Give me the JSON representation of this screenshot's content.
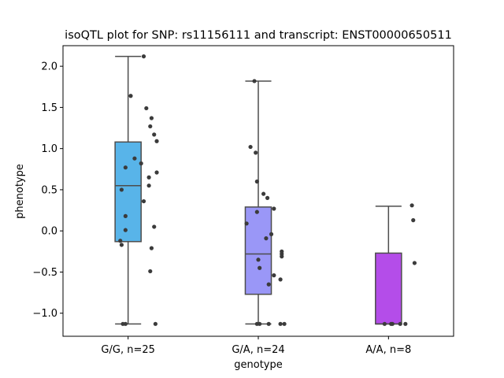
{
  "chart_data": {
    "type": "box",
    "title": "isoQTL plot for SNP: rs11156111 and transcript: ENST00000650511",
    "xlabel": "genotype",
    "ylabel": "phenotype",
    "ylim": [
      -1.28,
      2.25
    ],
    "yticks": [
      -1.0,
      -0.5,
      0.0,
      0.5,
      1.0,
      1.5,
      2.0
    ],
    "ytick_labels": [
      "−1.0",
      "−0.5",
      "0.0",
      "0.5",
      "1.0",
      "1.5",
      "2.0"
    ],
    "grid": false,
    "categories": [
      "G/G, n=25",
      "G/A, n=24",
      "A/A, n=8"
    ],
    "colors": [
      "#58b4e9",
      "#9a97f7",
      "#b44de9"
    ],
    "boxes": [
      {
        "category": "G/G, n=25",
        "whislo": -1.13,
        "q1": -0.13,
        "med": 0.55,
        "q3": 1.08,
        "whishi": 2.12
      },
      {
        "category": "G/A, n=24",
        "whislo": -1.13,
        "q1": -0.77,
        "med": -0.28,
        "q3": 0.29,
        "whishi": 1.82
      },
      {
        "category": "A/A, n=8",
        "whislo": -1.13,
        "q1": -1.13,
        "med": -1.13,
        "q3": -0.27,
        "whishi": 0.3
      }
    ],
    "points": [
      [
        [
          0.12,
          2.12
        ],
        [
          0.02,
          1.64
        ],
        [
          0.14,
          1.49
        ],
        [
          0.18,
          1.37
        ],
        [
          0.17,
          1.27
        ],
        [
          0.2,
          1.17
        ],
        [
          0.22,
          1.09
        ],
        [
          0.05,
          0.88
        ],
        [
          0.1,
          0.82
        ],
        [
          -0.02,
          0.77
        ],
        [
          0.22,
          0.71
        ],
        [
          0.16,
          0.65
        ],
        [
          0.16,
          0.55
        ],
        [
          -0.05,
          0.5
        ],
        [
          0.12,
          0.36
        ],
        [
          -0.02,
          0.18
        ],
        [
          -0.02,
          0.01
        ],
        [
          0.2,
          0.05
        ],
        [
          -0.06,
          -0.12
        ],
        [
          -0.05,
          -0.17
        ],
        [
          0.18,
          -0.21
        ],
        [
          0.17,
          -0.49
        ],
        [
          -0.04,
          -1.13
        ],
        [
          -0.02,
          -1.13
        ],
        [
          0.21,
          -1.13
        ]
      ],
      [
        [
          -0.03,
          1.82
        ],
        [
          -0.06,
          1.02
        ],
        [
          -0.02,
          0.95
        ],
        [
          -0.01,
          0.6
        ],
        [
          0.04,
          0.45
        ],
        [
          0.07,
          0.4
        ],
        [
          0.12,
          0.27
        ],
        [
          -0.01,
          0.23
        ],
        [
          -0.09,
          0.09
        ],
        [
          0.1,
          -0.04
        ],
        [
          0.06,
          -0.09
        ],
        [
          0.18,
          -0.25
        ],
        [
          0.18,
          -0.28
        ],
        [
          0.18,
          -0.31
        ],
        [
          0.0,
          -0.35
        ],
        [
          0.01,
          -0.45
        ],
        [
          0.12,
          -0.54
        ],
        [
          0.17,
          -0.59
        ],
        [
          0.08,
          -0.65
        ],
        [
          -0.01,
          -1.13
        ],
        [
          0.01,
          -1.13
        ],
        [
          0.08,
          -1.13
        ],
        [
          0.17,
          -1.13
        ],
        [
          0.2,
          -1.13
        ]
      ],
      [
        [
          0.18,
          0.31
        ],
        [
          0.19,
          0.13
        ],
        [
          0.2,
          -0.39
        ],
        [
          -0.03,
          -1.13
        ],
        [
          0.02,
          -1.13
        ],
        [
          0.03,
          -1.13
        ],
        [
          0.09,
          -1.13
        ],
        [
          0.13,
          -1.13
        ]
      ]
    ]
  }
}
